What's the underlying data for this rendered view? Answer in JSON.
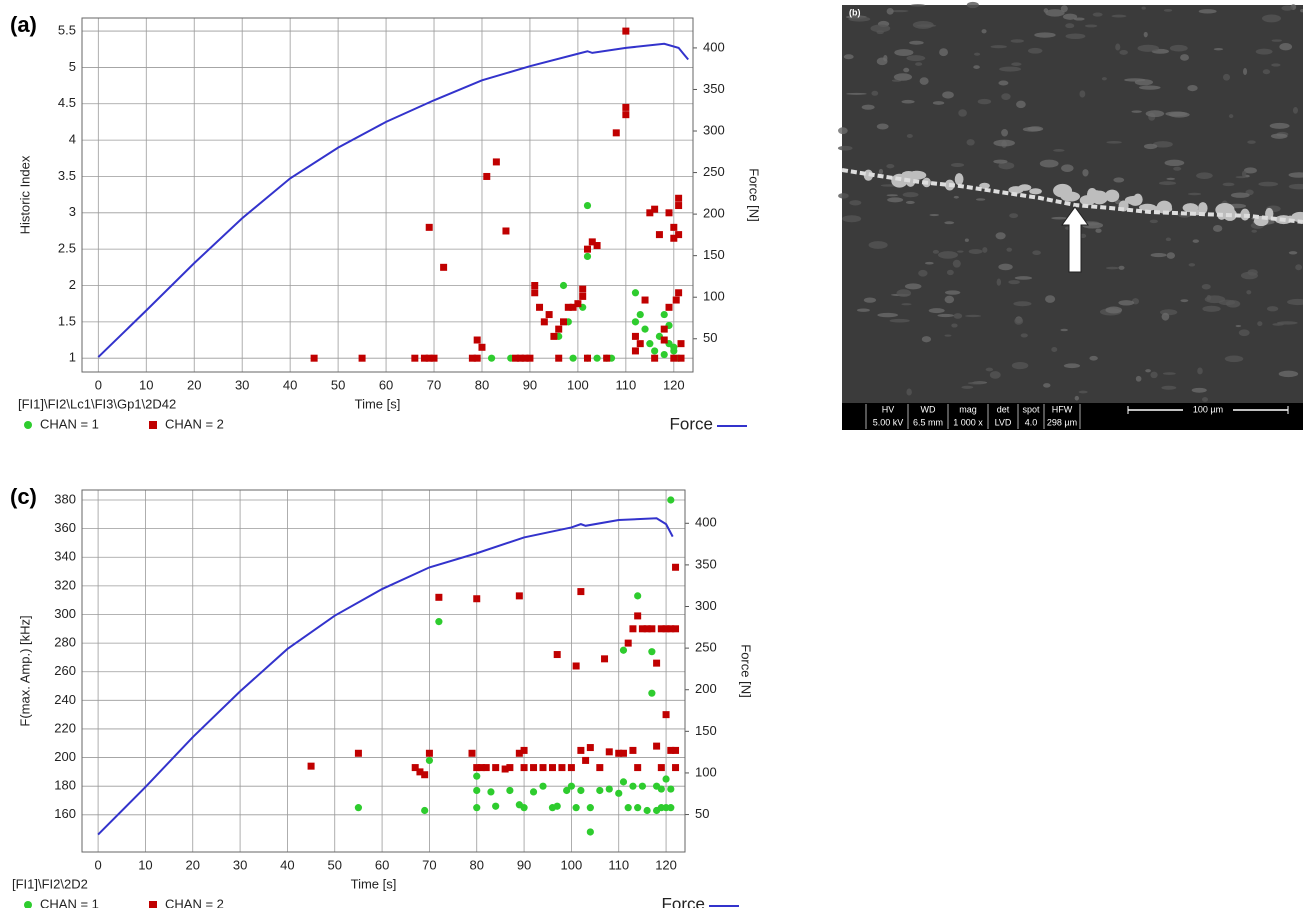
{
  "chart_data": [
    {
      "type": "scatter",
      "panel_label": "(a)",
      "y_label": "Historic Index",
      "y2_label": "Force [N]",
      "x_label": "Time [s]",
      "source_label": "[FI1]\\FI2\\Lc1\\FI3\\Gp1\\2D42",
      "xlim": [
        -3.4,
        124
      ],
      "xticks": [
        0,
        10,
        20,
        30,
        40,
        50,
        60,
        70,
        80,
        90,
        100,
        110,
        120
      ],
      "ylim": [
        0.81,
        5.68
      ],
      "yticks": [
        1,
        1.5,
        2,
        2.5,
        3,
        3.5,
        4,
        4.5,
        5,
        5.5
      ],
      "y2lim": [
        10,
        436
      ],
      "y2ticks": [
        50,
        100,
        150,
        200,
        250,
        300,
        350,
        400
      ],
      "grid": true,
      "series": [
        {
          "name": "CHAN = 1",
          "mark": "circle",
          "color": "#2ecc2e",
          "x": [
            82,
            86,
            96,
            97,
            98,
            99,
            101,
            102,
            102,
            102,
            104,
            106,
            107,
            112,
            112,
            113,
            114,
            115,
            116,
            117,
            118,
            118,
            119,
            119,
            120,
            120,
            121
          ],
          "values": [
            1,
            1,
            1.3,
            2,
            1.5,
            1,
            1.7,
            1,
            3.1,
            2.4,
            1,
            1,
            1,
            1.9,
            1.5,
            1.6,
            1.4,
            1.2,
            1.1,
            1.3,
            1.6,
            1.05,
            1.2,
            1.45,
            1.1,
            1.15,
            1
          ]
        },
        {
          "name": "CHAN = 2",
          "mark": "square",
          "color": "#c00000",
          "x": [
            45,
            55,
            66,
            68,
            69,
            70,
            69,
            72,
            78,
            79,
            79,
            80,
            81,
            83,
            85,
            87,
            89,
            90,
            91,
            91,
            92,
            93,
            94,
            95,
            96,
            97,
            98,
            99,
            100,
            101,
            101,
            102,
            103,
            104,
            108,
            110,
            110,
            110,
            112,
            112,
            113,
            114,
            115,
            116,
            117,
            118,
            118,
            119,
            119,
            120,
            120,
            120.5,
            121,
            121,
            121,
            121,
            121.5,
            121.5,
            106,
            102,
            96,
            88,
            116,
            120
          ],
          "values": [
            1,
            1,
            1,
            1,
            1,
            1,
            2.8,
            2.25,
            1,
            1,
            1.25,
            1.15,
            3.5,
            3.7,
            2.75,
            1,
            1,
            1,
            1.9,
            2,
            1.7,
            1.5,
            1.6,
            1.3,
            1.4,
            1.5,
            1.7,
            1.7,
            1.75,
            1.85,
            1.95,
            2.5,
            2.6,
            2.55,
            4.1,
            4.35,
            4.45,
            5.5,
            1.1,
            1.3,
            1.2,
            1.8,
            3,
            3.05,
            2.7,
            1.25,
            1.4,
            1.7,
            3,
            2.8,
            2.65,
            1.8,
            3.2,
            3.1,
            2.7,
            1.9,
            1.2,
            1,
            1,
            1,
            1,
            1,
            1,
            1
          ]
        },
        {
          "name": "Force",
          "mark": "line",
          "axis": "y2",
          "color": "#3333cc",
          "x": [
            0,
            10,
            20,
            30,
            40,
            50,
            60,
            70,
            80,
            90,
            100,
            102,
            103,
            110,
            118,
            121,
            122,
            123
          ],
          "values": [
            28,
            84,
            141,
            195,
            243,
            280,
            311,
            337,
            361,
            378,
            393,
            396,
            394,
            400,
            405,
            400,
            393,
            386
          ]
        }
      ]
    },
    {
      "type": "scatter",
      "panel_label": "(c)",
      "y_label": "F(max. Amp.) [kHz]",
      "y2_label": "Force [N]",
      "x_label": "Time [s]",
      "source_label": "[FI1]\\FI2\\2D2",
      "xlim": [
        -3.4,
        124
      ],
      "xticks": [
        0,
        10,
        20,
        30,
        40,
        50,
        60,
        70,
        80,
        90,
        100,
        110,
        120
      ],
      "ylim": [
        134,
        387
      ],
      "yticks": [
        160,
        180,
        200,
        220,
        240,
        260,
        280,
        300,
        320,
        340,
        360,
        380
      ],
      "y2lim": [
        5,
        440
      ],
      "y2ticks": [
        50,
        100,
        150,
        200,
        250,
        300,
        350,
        400
      ],
      "grid": true,
      "series": [
        {
          "name": "CHAN = 1",
          "mark": "circle",
          "color": "#2ecc2e",
          "x": [
            55,
            69,
            70,
            72,
            80,
            80,
            80,
            83,
            84,
            87,
            89,
            90,
            92,
            94,
            96,
            97,
            99,
            100,
            101,
            102,
            104,
            104,
            106,
            108,
            110,
            111,
            111,
            112,
            113,
            114,
            114,
            115,
            116,
            117,
            117,
            118,
            118,
            119,
            119,
            120,
            120,
            121,
            121,
            121
          ],
          "values": [
            165,
            163,
            198,
            295,
            187,
            177,
            165,
            176,
            166,
            177,
            167,
            165,
            176,
            180,
            165,
            166,
            177,
            180,
            165,
            177,
            148,
            165,
            177,
            178,
            175,
            183,
            275,
            165,
            180,
            313,
            165,
            180,
            163,
            245,
            274,
            163,
            180,
            165,
            178,
            185,
            165,
            178,
            165,
            380
          ]
        },
        {
          "name": "CHAN = 2",
          "mark": "square",
          "color": "#c00000",
          "x": [
            45,
            55,
            67,
            68,
            69,
            70,
            72,
            79,
            80,
            80,
            81,
            82,
            84,
            86,
            87,
            89,
            89,
            90,
            90,
            92,
            94,
            96,
            97,
            98,
            100,
            101,
            102,
            102,
            103,
            104,
            106,
            107,
            108,
            110,
            111,
            112,
            113,
            113,
            114,
            114,
            115,
            116,
            117,
            118,
            118,
            119,
            119,
            120,
            120,
            121,
            121,
            122,
            122,
            122,
            122
          ],
          "values": [
            194,
            203,
            193,
            190,
            188,
            203,
            312,
            203,
            193,
            311,
            193,
            193,
            193,
            192,
            193,
            313,
            203,
            205,
            193,
            193,
            193,
            193,
            272,
            193,
            193,
            264,
            316,
            205,
            198,
            207,
            193,
            269,
            204,
            203,
            203,
            280,
            290,
            205,
            299,
            193,
            290,
            290,
            290,
            266,
            208,
            193,
            290,
            230,
            290,
            290,
            205,
            193,
            290,
            333,
            205
          ]
        },
        {
          "name": "Force",
          "mark": "line",
          "axis": "y2",
          "color": "#3333cc",
          "x": [
            0,
            10,
            20,
            30,
            40,
            50,
            60,
            70,
            80,
            90,
            100,
            102,
            103,
            110,
            118,
            120,
            121.4
          ],
          "values": [
            26,
            83,
            143,
            198,
            249,
            289,
            321,
            347,
            364,
            383,
            395,
            399,
            397,
            404,
            406,
            399,
            384
          ]
        }
      ]
    }
  ],
  "image_panel": {
    "label": "(b)",
    "scale_bar": "100 µm",
    "info_bar": [
      {
        "header": "HV",
        "value": "5.00 kV"
      },
      {
        "header": "WD",
        "value": "6.5 mm"
      },
      {
        "header": "mag",
        "value": "1 000 x"
      },
      {
        "header": "det",
        "value": "LVD"
      },
      {
        "header": "spot",
        "value": "4.0"
      },
      {
        "header": "HFW",
        "value": "298 µm"
      }
    ]
  }
}
